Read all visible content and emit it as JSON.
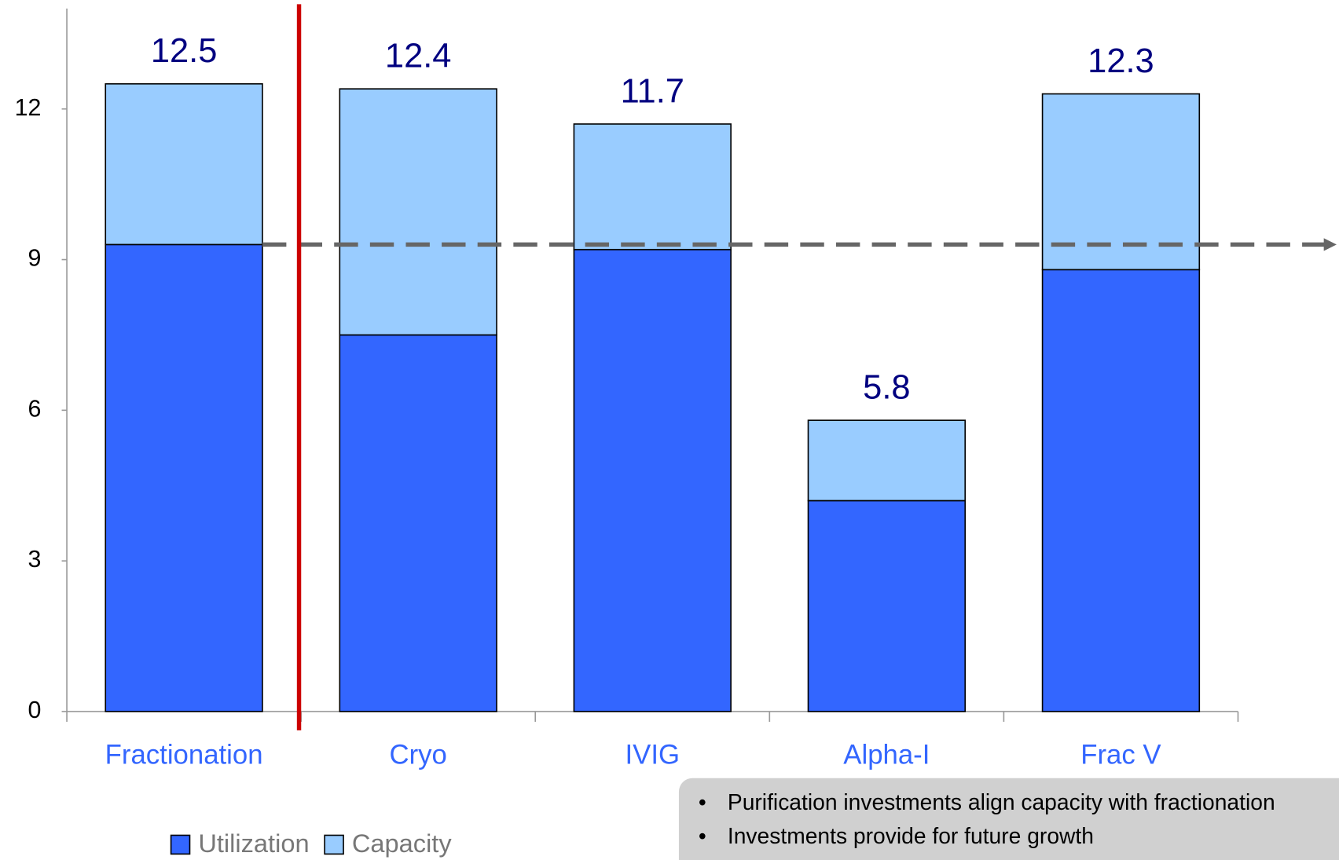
{
  "chart_data": {
    "type": "bar",
    "stacked": true,
    "categories": [
      "Fractionation",
      "Cryo",
      "IVIG",
      "Alpha-I",
      "Frac V"
    ],
    "series": [
      {
        "name": "Utilization",
        "color": "#3366ff",
        "values": [
          9.3,
          7.5,
          9.2,
          4.2,
          8.8
        ]
      },
      {
        "name": "Capacity",
        "color": "#99ccff",
        "values": [
          3.2,
          4.9,
          2.5,
          1.6,
          3.5
        ]
      }
    ],
    "totals": [
      12.5,
      12.4,
      11.7,
      5.8,
      12.3
    ],
    "reference_line": 9.3,
    "ylim": [
      0,
      14
    ],
    "yticks": [
      0,
      3,
      6,
      9,
      12
    ],
    "grid": false,
    "legend": "bottom-left",
    "notes": [
      "Purification investments align capacity with fractionation",
      "Investments provide for future growth"
    ]
  }
}
